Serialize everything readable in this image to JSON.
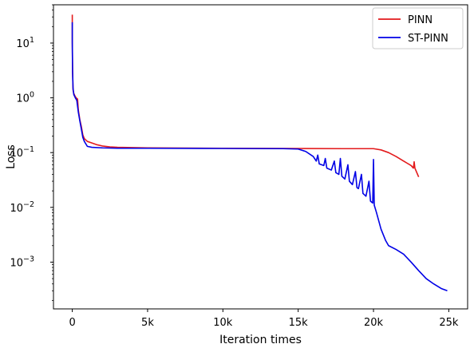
{
  "chart_data": {
    "type": "line",
    "xlabel": "Iteration times",
    "ylabel": "Loss",
    "yscale": "log",
    "xlim": [
      -1250,
      26250
    ],
    "ylim": [
      0.00014,
      50
    ],
    "grid": false,
    "legend_position": "top-right",
    "x_ticks": [
      {
        "value": 0,
        "label": "0"
      },
      {
        "value": 5000,
        "label": "5k"
      },
      {
        "value": 10000,
        "label": "10k"
      },
      {
        "value": 15000,
        "label": "15k"
      },
      {
        "value": 20000,
        "label": "20k"
      },
      {
        "value": 25000,
        "label": "25k"
      }
    ],
    "y_ticks": [
      {
        "exp": 1,
        "label_base": "10",
        "label_exp": "1"
      },
      {
        "exp": 0,
        "label_base": "10",
        "label_exp": "0"
      },
      {
        "exp": -1,
        "label_base": "10",
        "label_exp": "−1"
      },
      {
        "exp": -2,
        "label_base": "10",
        "label_exp": "−2"
      },
      {
        "exp": -3,
        "label_base": "10",
        "label_exp": "−3"
      }
    ],
    "series": [
      {
        "name": "PINN",
        "color": "#e31a1c",
        "points": [
          [
            0,
            33
          ],
          [
            0,
            12
          ],
          [
            20,
            3
          ],
          [
            50,
            1.4
          ],
          [
            100,
            1.2
          ],
          [
            200,
            1.05
          ],
          [
            300,
            0.97
          ],
          [
            350,
            0.95
          ],
          [
            400,
            0.6
          ],
          [
            500,
            0.4
          ],
          [
            600,
            0.3
          ],
          [
            700,
            0.21
          ],
          [
            800,
            0.18
          ],
          [
            1000,
            0.16
          ],
          [
            1300,
            0.15
          ],
          [
            1600,
            0.14
          ],
          [
            2000,
            0.132
          ],
          [
            2500,
            0.127
          ],
          [
            3000,
            0.125
          ],
          [
            5000,
            0.122
          ],
          [
            10000,
            0.12
          ],
          [
            15000,
            0.119
          ],
          [
            18000,
            0.118
          ],
          [
            20000,
            0.118
          ],
          [
            20500,
            0.112
          ],
          [
            21000,
            0.1
          ],
          [
            21500,
            0.085
          ],
          [
            22000,
            0.07
          ],
          [
            22500,
            0.058
          ],
          [
            22650,
            0.052
          ],
          [
            22700,
            0.068
          ],
          [
            22750,
            0.052
          ],
          [
            23000,
            0.036
          ]
        ]
      },
      {
        "name": "ST-PINN",
        "color": "#0000e6",
        "points": [
          [
            0,
            24
          ],
          [
            0,
            10
          ],
          [
            20,
            3
          ],
          [
            50,
            1.5
          ],
          [
            100,
            1.15
          ],
          [
            200,
            1.0
          ],
          [
            300,
            0.9
          ],
          [
            400,
            0.55
          ],
          [
            500,
            0.38
          ],
          [
            600,
            0.27
          ],
          [
            700,
            0.19
          ],
          [
            800,
            0.16
          ],
          [
            1000,
            0.13
          ],
          [
            1300,
            0.125
          ],
          [
            2000,
            0.122
          ],
          [
            3000,
            0.12
          ],
          [
            5000,
            0.12
          ],
          [
            10000,
            0.119
          ],
          [
            14000,
            0.118
          ],
          [
            15000,
            0.116
          ],
          [
            15500,
            0.105
          ],
          [
            16000,
            0.085
          ],
          [
            16200,
            0.07
          ],
          [
            16300,
            0.09
          ],
          [
            16400,
            0.062
          ],
          [
            16700,
            0.058
          ],
          [
            16800,
            0.078
          ],
          [
            16900,
            0.052
          ],
          [
            17200,
            0.048
          ],
          [
            17400,
            0.07
          ],
          [
            17500,
            0.043
          ],
          [
            17700,
            0.04
          ],
          [
            17800,
            0.078
          ],
          [
            17900,
            0.037
          ],
          [
            18100,
            0.033
          ],
          [
            18300,
            0.06
          ],
          [
            18400,
            0.03
          ],
          [
            18600,
            0.026
          ],
          [
            18800,
            0.045
          ],
          [
            18900,
            0.023
          ],
          [
            19000,
            0.022
          ],
          [
            19200,
            0.04
          ],
          [
            19300,
            0.018
          ],
          [
            19500,
            0.016
          ],
          [
            19700,
            0.03
          ],
          [
            19800,
            0.013
          ],
          [
            19950,
            0.012
          ],
          [
            20000,
            0.075
          ],
          [
            20050,
            0.011
          ],
          [
            20200,
            0.008
          ],
          [
            20500,
            0.004
          ],
          [
            20800,
            0.0025
          ],
          [
            21000,
            0.002
          ],
          [
            21500,
            0.0017
          ],
          [
            22000,
            0.0014
          ],
          [
            22500,
            0.001
          ],
          [
            23000,
            0.0007
          ],
          [
            23500,
            0.0005
          ],
          [
            24000,
            0.0004
          ],
          [
            24500,
            0.00033
          ],
          [
            24900,
            0.0003
          ]
        ]
      }
    ]
  }
}
